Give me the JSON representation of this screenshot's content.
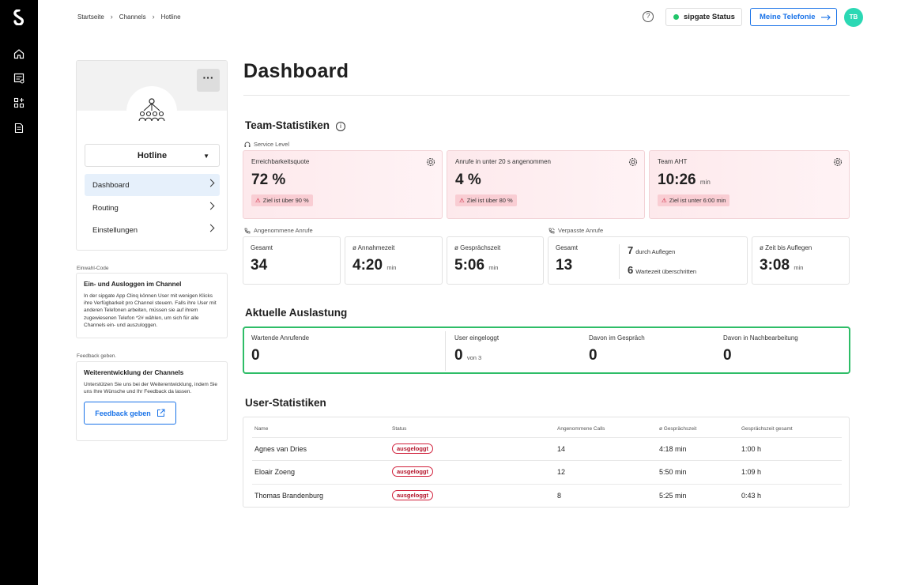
{
  "breadcrumb": [
    "Startseite",
    "Channels",
    "Hotline"
  ],
  "header": {
    "status_label": "sipgate Status",
    "telefonie_label": "Meine Telefonie",
    "avatar_initials": "TB",
    "status_color": "#21c56a",
    "accent": "#1a73e8"
  },
  "channel": {
    "name": "Hotline",
    "menu": [
      {
        "label": "Dashboard",
        "active": true
      },
      {
        "label": "Routing",
        "active": false
      },
      {
        "label": "Einstellungen",
        "active": false
      }
    ]
  },
  "einwahl": {
    "label": "Einwahl-Code",
    "title": "Ein- und Ausloggen im Channel",
    "text": "In der sipgate App Clinq können User mit wenigen Klicks ihre Verfügbarkeit pro Channel steuern. Falls ihre User mit anderen Telefonen arbeiten, müssen sie auf ihrem zugewiesenen Telefon *2# wählen, um sich für alle Channels ein- und auszuloggen."
  },
  "feedback": {
    "label": "Feedback geben.",
    "title": "Weiterentwicklung der Channels",
    "text": "Unterstützen Sie uns bei der Weiterentwicklung, indem Sie uns Ihre Wünsche und Ihr Feedback da lassen.",
    "button": "Feedback geben"
  },
  "page_title": "Dashboard",
  "team": {
    "title": "Team-Statistiken",
    "service_level_label": "Service Level",
    "kpis": [
      {
        "label": "Erreichbarkeitsquote",
        "value": "72 %",
        "unit": "",
        "warning": "Ziel ist über 90 %"
      },
      {
        "label": "Anrufe in unter 20 s angenommen",
        "value": "4 %",
        "unit": "",
        "warning": "Ziel ist über 80 %"
      },
      {
        "label": "Team AHT",
        "value": "10:26",
        "unit": "min",
        "warning": "Ziel ist unter 6:00 min"
      }
    ],
    "accepted_label": "Angenommene Anrufe",
    "missed_label": "Verpasste Anrufe",
    "accepted": [
      {
        "label": "Gesamt",
        "value": "34",
        "unit": ""
      },
      {
        "label": "ø Annahmezeit",
        "value": "4:20",
        "unit": "min"
      },
      {
        "label": "ø Gesprächszeit",
        "value": "5:06",
        "unit": "min"
      }
    ],
    "missed": {
      "total_label": "Gesamt",
      "total_value": "13",
      "hangup_value": "7",
      "hangup_label": "durch Auflegen",
      "timeout_value": "6",
      "timeout_label": "Wartezeit überschritten",
      "until_hangup_label": "ø Zeit bis Auflegen",
      "until_hangup_value": "3:08",
      "until_hangup_unit": "min"
    }
  },
  "live": {
    "title": "Aktuelle Auslastung",
    "cells": [
      {
        "label": "Wartende Anrufende",
        "value": "0",
        "unit": ""
      },
      {
        "label": "User eingeloggt",
        "value": "0",
        "unit": "von 3"
      },
      {
        "label": "Davon im Gespräch",
        "value": "0",
        "unit": ""
      },
      {
        "label": "Davon in Nachbearbeitung",
        "value": "0",
        "unit": ""
      }
    ],
    "border_color": "#2ebd67"
  },
  "users": {
    "title": "User-Statistiken",
    "columns": [
      "Name",
      "Status",
      "Angenommene Calls",
      "ø Gesprächszeit",
      "Gesprächszeit gesamt"
    ],
    "rows": [
      [
        "Agnes van Dries",
        "ausgeloggt",
        "14",
        "4:18 min",
        "1:00 h"
      ],
      [
        "Eloair Zoeng",
        "ausgeloggt",
        "12",
        "5:50 min",
        "1:09 h"
      ],
      [
        "Thomas Brandenburg",
        "ausgeloggt",
        "8",
        "5:25 min",
        "0:43 h"
      ]
    ]
  }
}
